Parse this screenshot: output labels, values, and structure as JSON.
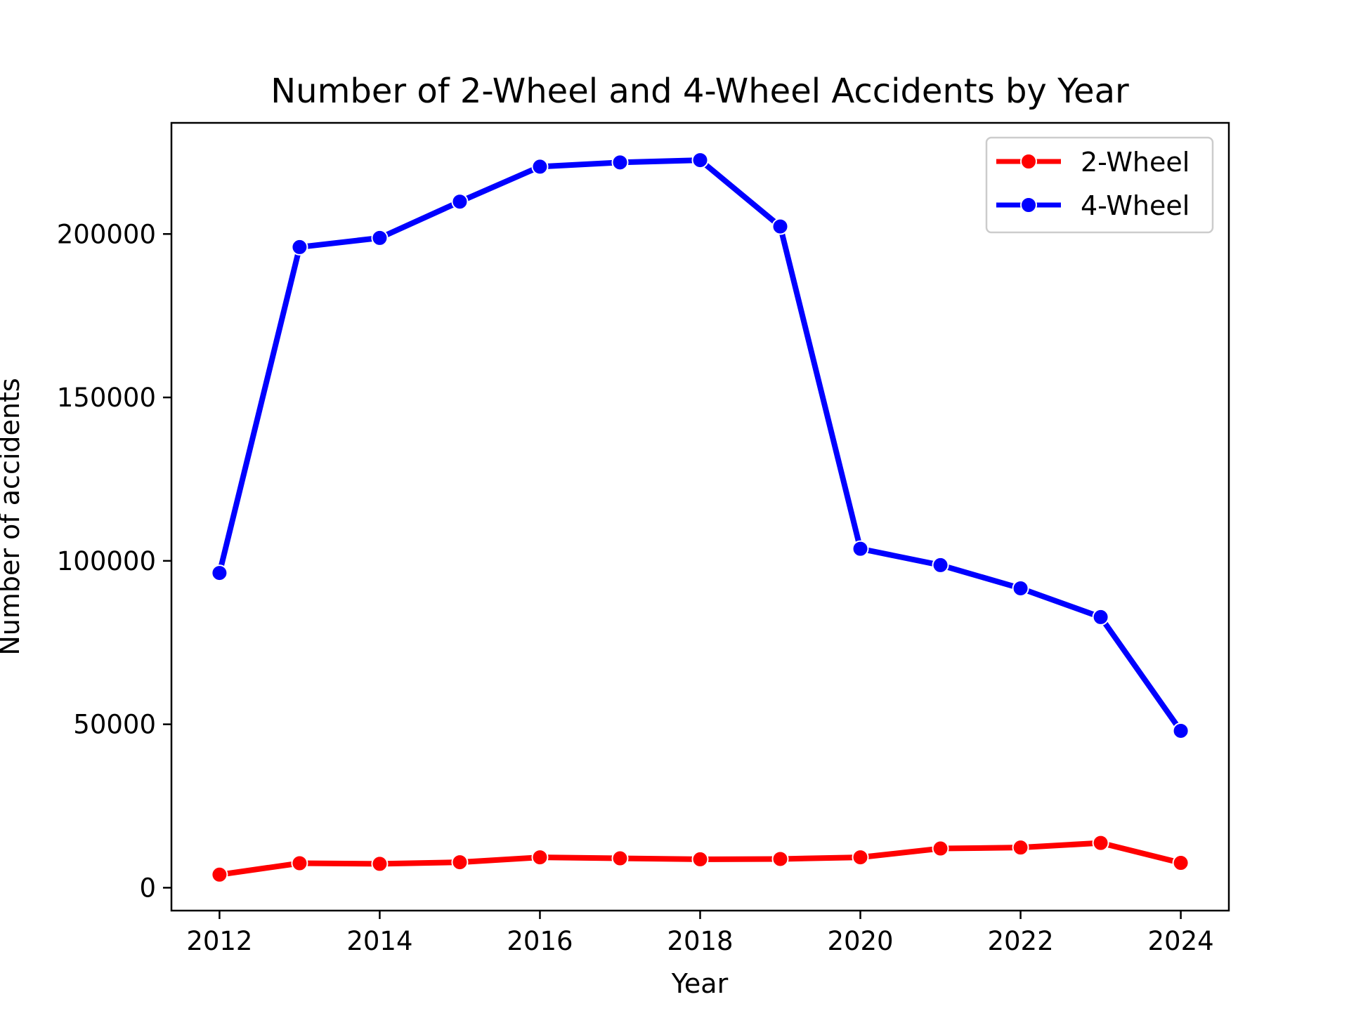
{
  "chart_data": {
    "type": "line",
    "title": "Number of 2-Wheel and 4-Wheel Accidents by Year",
    "xlabel": "Year",
    "ylabel": "Number of accidents",
    "x": [
      2012,
      2013,
      2014,
      2015,
      2016,
      2017,
      2018,
      2019,
      2020,
      2021,
      2022,
      2023,
      2024
    ],
    "xlim": [
      2011.4,
      2024.6
    ],
    "ylim": [
      -7000,
      234000
    ],
    "xticks": [
      2012,
      2014,
      2016,
      2018,
      2020,
      2022,
      2024
    ],
    "yticks": [
      0,
      50000,
      100000,
      150000,
      200000
    ],
    "xtick_labels": [
      "2012",
      "2014",
      "2016",
      "2018",
      "2020",
      "2022",
      "2024"
    ],
    "ytick_labels": [
      "0",
      "50000",
      "100000",
      "150000",
      "200000"
    ],
    "grid": false,
    "legend_position": "top-right",
    "series": [
      {
        "name": "2-Wheel",
        "color": "#ff0000",
        "values": [
          4000,
          7500,
          7300,
          7800,
          9300,
          9000,
          8700,
          8800,
          9300,
          12000,
          12300,
          13700,
          7600
        ]
      },
      {
        "name": "4-Wheel",
        "color": "#0000ff",
        "values": [
          96300,
          196000,
          198800,
          209900,
          220600,
          221900,
          222600,
          202300,
          103700,
          98700,
          91600,
          82800,
          48000
        ]
      }
    ]
  }
}
